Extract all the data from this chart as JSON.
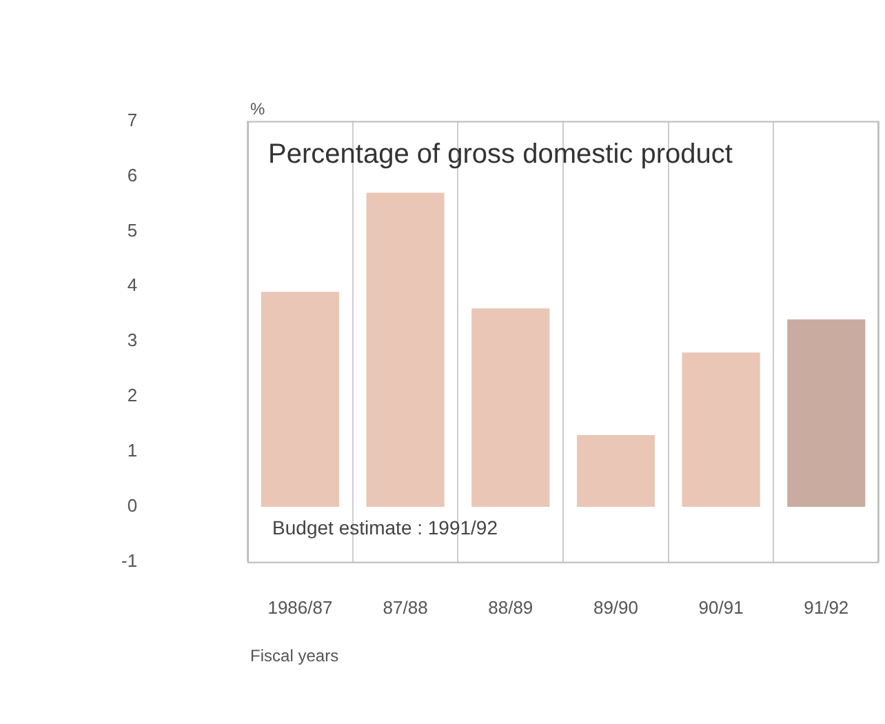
{
  "chart_data": {
    "type": "bar",
    "title": "Percentage of gross domestic product",
    "ylabel": "%",
    "xlabel": "Fiscal years",
    "annotations": [
      "Budget estimate : 1991/92"
    ],
    "categories": [
      "1986/87",
      "87/88",
      "88/89",
      "89/90",
      "90/91",
      "91/92"
    ],
    "values": [
      3.9,
      5.7,
      3.6,
      1.3,
      2.8,
      3.4
    ],
    "colors": [
      "#e9c6b6",
      "#e9c6b6",
      "#e9c6b6",
      "#e9c6b6",
      "#e9c6b6",
      "#c9ab9f"
    ],
    "ylim": [
      -1,
      7
    ],
    "yticks": [
      -1,
      0,
      1,
      2,
      3,
      4,
      5,
      6,
      7
    ],
    "grid": "x",
    "legend": false
  }
}
